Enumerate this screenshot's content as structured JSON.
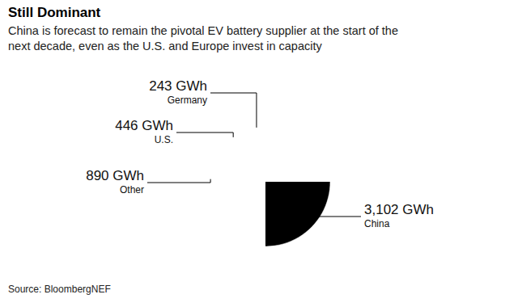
{
  "chart_data": {
    "type": "pie",
    "title": "Still Dominant",
    "subtitle": [
      "China is forecast to remain the pivotal EV battery supplier at the start of the",
      "next decade, even as the U.S. and Europe invest in capacity"
    ],
    "categories": [
      "China",
      "Other",
      "U.S.",
      "Germany"
    ],
    "values": [
      3102,
      890,
      446,
      243
    ],
    "value_labels": [
      "3,102 GWh",
      "890 GWh",
      "446 GWh",
      "243 GWh"
    ],
    "colors": [
      "#000000",
      "#ff1a8c",
      "#9e9e9e",
      "#1aa3ff"
    ],
    "data_labels": true,
    "source": "Source: BloombergNEF"
  }
}
